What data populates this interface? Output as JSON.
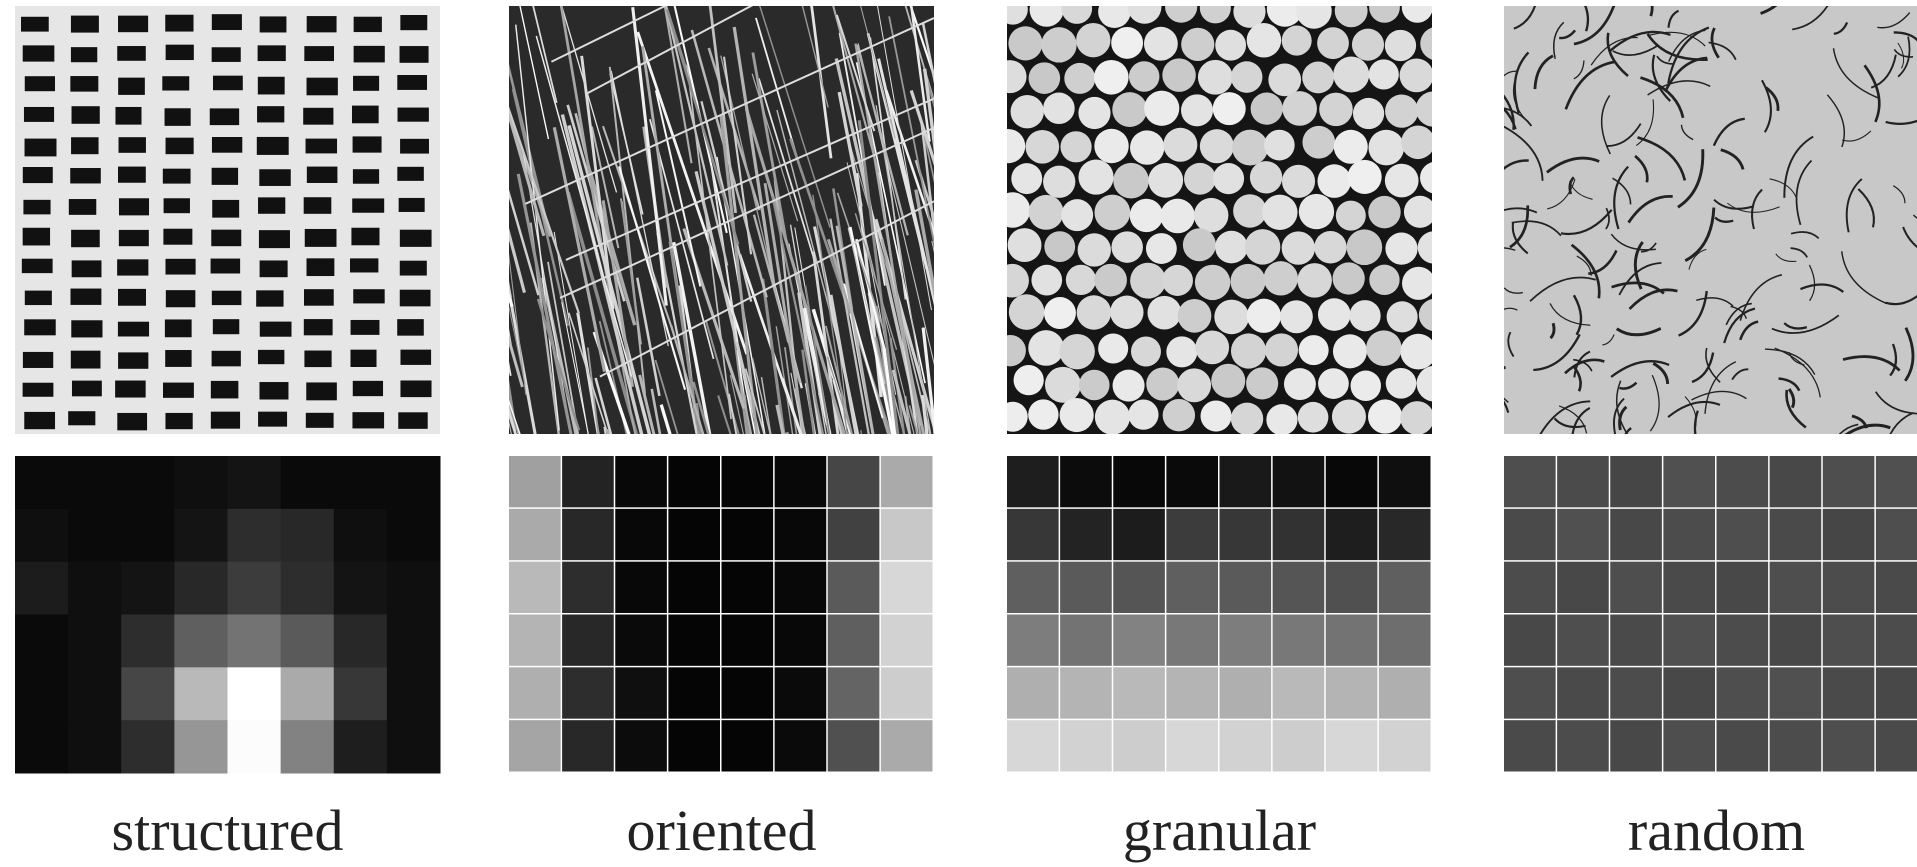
{
  "panels": [
    {
      "label": "structured"
    },
    {
      "label": "oriented"
    },
    {
      "label": "granular"
    },
    {
      "label": "random"
    }
  ]
}
